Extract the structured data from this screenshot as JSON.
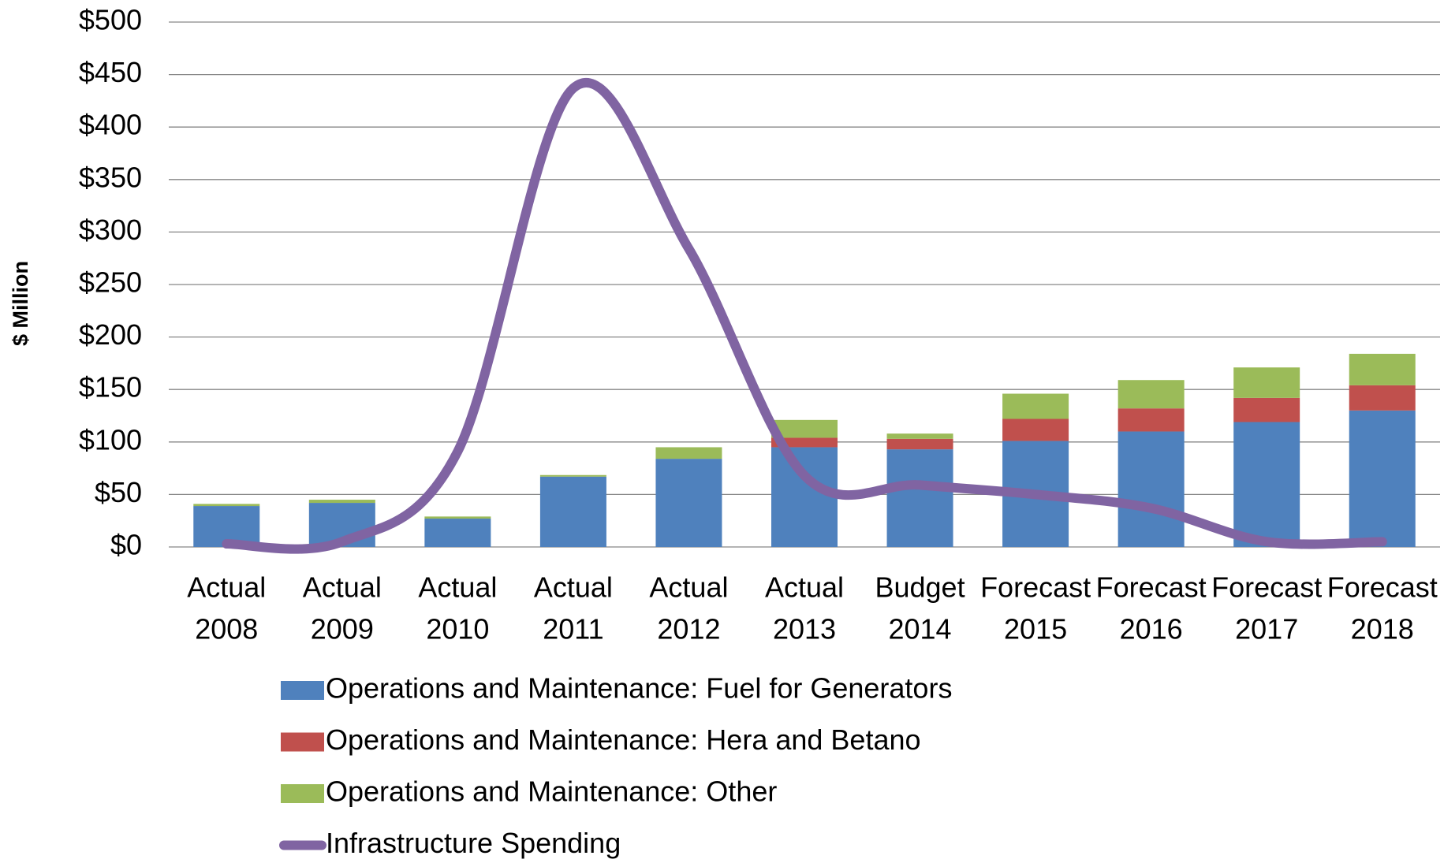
{
  "chart_data": {
    "type": "bar",
    "y_label": "$ Million",
    "categories": [
      [
        "Actual",
        "2008"
      ],
      [
        "Actual",
        "2009"
      ],
      [
        "Actual",
        "2010"
      ],
      [
        "Actual",
        "2011"
      ],
      [
        "Actual",
        "2012"
      ],
      [
        "Actual",
        "2013"
      ],
      [
        "Budget",
        "2014"
      ],
      [
        "Forecast",
        "2015"
      ],
      [
        "Forecast",
        "2016"
      ],
      [
        "Forecast",
        "2017"
      ],
      [
        "Forecast",
        "2018"
      ]
    ],
    "series": [
      {
        "name": "Operations and Maintenance: Fuel for Generators",
        "color": "#4f81bd",
        "values": [
          39,
          42,
          27,
          67,
          84,
          95,
          93,
          101,
          110,
          119,
          130
        ]
      },
      {
        "name": "Operations and Maintenance: Hera and Betano",
        "color": "#c0504d",
        "values": [
          0,
          0,
          0,
          0,
          0,
          9,
          10,
          21,
          22,
          23,
          24
        ]
      },
      {
        "name": "Operations and Maintenance: Other",
        "color": "#9bbb59",
        "values": [
          2,
          3,
          2,
          1.5,
          11,
          17,
          5,
          24,
          27,
          29,
          30
        ]
      },
      {
        "name": "Infrastructure Spending",
        "color": "#8064a2",
        "type": "line",
        "values": [
          3,
          5,
          91,
          437,
          284,
          68,
          59,
          50,
          37,
          5,
          5
        ]
      }
    ],
    "ylim": [
      0,
      500
    ],
    "yticks": [
      {
        "value": 0,
        "label": "$0"
      },
      {
        "value": 50,
        "label": "$50"
      },
      {
        "value": 100,
        "label": "$100"
      },
      {
        "value": 150,
        "label": "$150"
      },
      {
        "value": 200,
        "label": "$200"
      },
      {
        "value": 250,
        "label": "$250"
      },
      {
        "value": 300,
        "label": "$300"
      },
      {
        "value": 350,
        "label": "$350"
      },
      {
        "value": 400,
        "label": "$400"
      },
      {
        "value": 450,
        "label": "$450"
      },
      {
        "value": 500,
        "label": "$500"
      }
    ],
    "grid": true
  }
}
